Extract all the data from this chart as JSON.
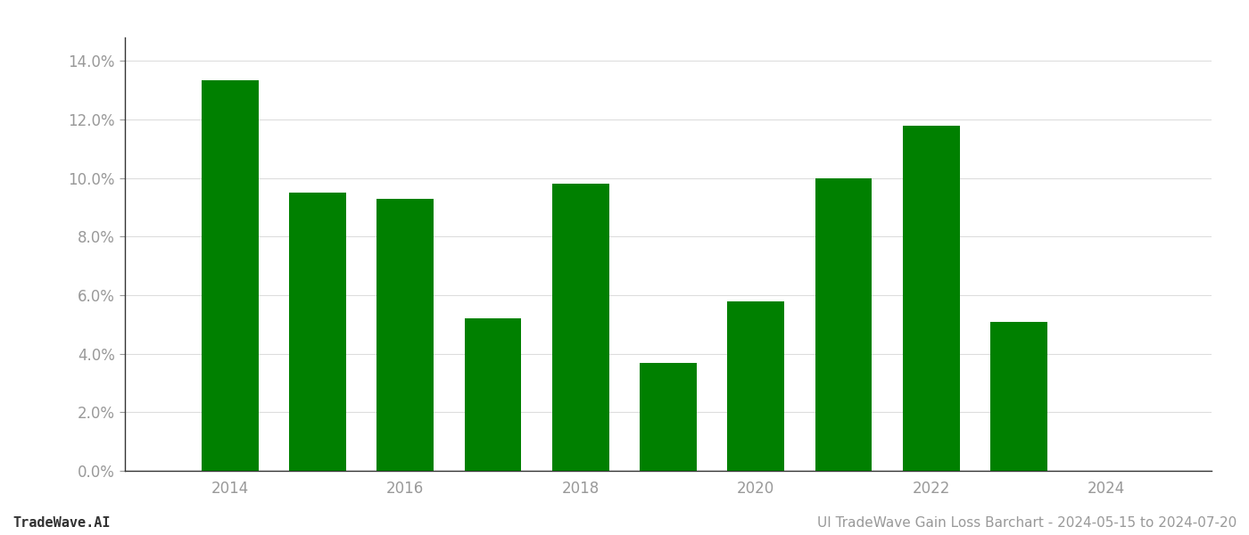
{
  "years": [
    2014,
    2015,
    2016,
    2017,
    2018,
    2019,
    2020,
    2021,
    2022,
    2023
  ],
  "values": [
    0.1335,
    0.095,
    0.093,
    0.052,
    0.098,
    0.037,
    0.058,
    0.1,
    0.118,
    0.051
  ],
  "bar_color": "#008000",
  "ylim": [
    0,
    0.148
  ],
  "yticks": [
    0.0,
    0.02,
    0.04,
    0.06,
    0.08,
    0.1,
    0.12,
    0.14
  ],
  "xtick_labels": [
    "2014",
    "2016",
    "2018",
    "2020",
    "2022",
    "2024"
  ],
  "xtick_positions": [
    2014,
    2016,
    2018,
    2020,
    2022,
    2024
  ],
  "footer_left": "TradeWave.AI",
  "footer_right": "UI TradeWave Gain Loss Barchart - 2024-05-15 to 2024-07-20",
  "background_color": "#ffffff",
  "grid_color": "#dddddd",
  "bar_width": 0.65,
  "figsize": [
    14.0,
    6.0
  ],
  "dpi": 100,
  "xlim_left": 2012.8,
  "xlim_right": 2025.2
}
